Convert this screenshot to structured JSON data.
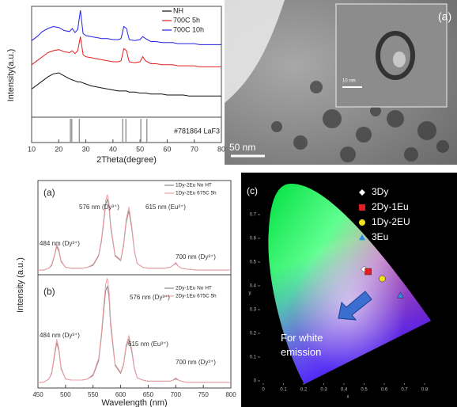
{
  "chart_data": [
    {
      "type": "line",
      "xlabel": "2Theta(degree)",
      "ylabel": "Intensity(a.u.)",
      "x": [
        10,
        12,
        14,
        16,
        18,
        20,
        22,
        24,
        25,
        26,
        27,
        28,
        29,
        30,
        32,
        34,
        36,
        38,
        40,
        42,
        43,
        44,
        45,
        46,
        48,
        50,
        51,
        52,
        54,
        56,
        58,
        60,
        62,
        64,
        66,
        68,
        70,
        72,
        74,
        76,
        78,
        80
      ],
      "series": [
        {
          "name": "NH",
          "color": "#111111",
          "values": [
            2.8,
            3.2,
            3.6,
            4.0,
            4.3,
            4.4,
            4.1,
            3.8,
            3.7,
            3.6,
            3.5,
            3.5,
            3.4,
            3.3,
            3.1,
            3.0,
            2.9,
            2.8,
            2.7,
            2.6,
            2.6,
            2.6,
            2.6,
            2.5,
            2.5,
            2.4,
            2.4,
            2.4,
            2.3,
            2.3,
            2.3,
            2.2,
            2.2,
            2.2,
            2.2,
            2.1,
            2.1,
            2.1,
            2.1,
            2.1,
            2.1,
            2.1
          ]
        },
        {
          "name": "700C 5h",
          "color": "#e02020",
          "values": [
            5.2,
            5.6,
            6.0,
            6.4,
            6.6,
            6.7,
            6.5,
            6.4,
            6.6,
            6.3,
            6.6,
            8.0,
            6.2,
            6.0,
            5.9,
            5.8,
            5.7,
            5.6,
            5.5,
            5.5,
            5.6,
            6.8,
            6.6,
            5.5,
            5.4,
            5.5,
            6.0,
            5.6,
            5.3,
            5.3,
            5.2,
            5.2,
            5.2,
            5.1,
            5.1,
            5.1,
            5.1,
            5.0,
            5.0,
            5.0,
            5.0,
            5.0
          ]
        },
        {
          "name": "700C 10h",
          "color": "#2020e0",
          "values": [
            7.6,
            8.0,
            8.5,
            8.8,
            9.0,
            8.9,
            8.6,
            8.5,
            8.8,
            8.4,
            8.7,
            10.6,
            8.3,
            8.1,
            8.0,
            7.9,
            7.8,
            7.8,
            7.7,
            7.7,
            7.8,
            9.0,
            8.8,
            7.7,
            7.6,
            7.7,
            8.0,
            7.8,
            7.5,
            7.5,
            7.4,
            7.4,
            7.4,
            7.3,
            7.3,
            7.3,
            7.3,
            7.2,
            7.2,
            7.2,
            7.2,
            7.2
          ]
        }
      ],
      "xlim": [
        10,
        80
      ],
      "xticks": [
        10,
        20,
        30,
        40,
        50,
        60,
        70,
        80
      ],
      "ylim": [
        0,
        11
      ],
      "reference": {
        "label": "#781864 LaF3",
        "positions": [
          24.3,
          24.8,
          27.6,
          43.6,
          44.8,
          50.3,
          52.5
        ]
      }
    },
    {
      "type": "line",
      "panel_label": "(a)",
      "annotations": [
        "576 nm (Dy³⁺)",
        "615 nm (Eu³⁺)",
        "484 nm (Dy³⁺)",
        "700 nm (Dy³⁺)"
      ],
      "x": [
        450,
        460,
        470,
        475,
        480,
        484,
        488,
        492,
        500,
        510,
        520,
        530,
        540,
        550,
        560,
        565,
        570,
        573,
        576,
        579,
        582,
        590,
        600,
        605,
        610,
        615,
        620,
        625,
        630,
        640,
        650,
        660,
        670,
        680,
        690,
        695,
        700,
        705,
        710,
        720,
        740,
        760,
        780,
        800
      ],
      "series": [
        {
          "name": "1Dy-2Eu No HT",
          "color": "#888888",
          "values": [
            0.05,
            0.05,
            0.07,
            0.1,
            0.2,
            0.3,
            0.25,
            0.14,
            0.08,
            0.07,
            0.07,
            0.07,
            0.08,
            0.1,
            0.2,
            0.35,
            0.6,
            0.75,
            0.8,
            0.72,
            0.5,
            0.2,
            0.15,
            0.3,
            0.55,
            0.68,
            0.5,
            0.25,
            0.12,
            0.08,
            0.07,
            0.07,
            0.07,
            0.07,
            0.08,
            0.1,
            0.12,
            0.09,
            0.07,
            0.06,
            0.05,
            0.05,
            0.05,
            0.05
          ]
        },
        {
          "name": "1Dy-2Eu 675C 5h",
          "color": "#f0a0a8",
          "values": [
            0.05,
            0.05,
            0.07,
            0.11,
            0.21,
            0.32,
            0.27,
            0.15,
            0.08,
            0.07,
            0.07,
            0.07,
            0.08,
            0.11,
            0.21,
            0.37,
            0.63,
            0.79,
            0.85,
            0.76,
            0.53,
            0.21,
            0.16,
            0.32,
            0.58,
            0.72,
            0.53,
            0.26,
            0.12,
            0.08,
            0.07,
            0.07,
            0.07,
            0.07,
            0.08,
            0.1,
            0.13,
            0.09,
            0.07,
            0.06,
            0.05,
            0.05,
            0.05,
            0.05
          ]
        }
      ],
      "xlim": [
        450,
        800
      ],
      "ylim": [
        0,
        1
      ]
    },
    {
      "type": "line",
      "panel_label": "(b)",
      "xlabel": "Wavelength (nm)",
      "ylabel": "Intensity (a.u.)",
      "annotations": [
        "576 nm (Dy³⁺)",
        "484 nm (Dy³⁺)",
        "615 nm (Eu³⁺)",
        "700 nm (Dy³⁺)"
      ],
      "x": [
        450,
        460,
        470,
        475,
        480,
        484,
        488,
        492,
        500,
        510,
        520,
        530,
        540,
        550,
        560,
        565,
        570,
        573,
        576,
        579,
        582,
        590,
        600,
        605,
        610,
        615,
        620,
        625,
        630,
        640,
        650,
        660,
        670,
        680,
        690,
        695,
        700,
        705,
        710,
        720,
        740,
        760,
        780,
        800
      ],
      "series": [
        {
          "name": "2Dy-1Eu No HT",
          "color": "#888888",
          "values": [
            0.05,
            0.05,
            0.08,
            0.13,
            0.28,
            0.4,
            0.33,
            0.17,
            0.08,
            0.07,
            0.07,
            0.07,
            0.08,
            0.11,
            0.24,
            0.45,
            0.72,
            0.86,
            0.9,
            0.8,
            0.55,
            0.2,
            0.13,
            0.2,
            0.36,
            0.43,
            0.33,
            0.17,
            0.09,
            0.07,
            0.06,
            0.06,
            0.06,
            0.06,
            0.06,
            0.07,
            0.08,
            0.07,
            0.06,
            0.05,
            0.05,
            0.05,
            0.05,
            0.05
          ]
        },
        {
          "name": "2Dy-1Eu 675C 5h",
          "color": "#f0a0a8",
          "values": [
            0.05,
            0.05,
            0.08,
            0.14,
            0.3,
            0.43,
            0.35,
            0.18,
            0.08,
            0.07,
            0.07,
            0.07,
            0.08,
            0.12,
            0.26,
            0.48,
            0.77,
            0.92,
            0.97,
            0.86,
            0.59,
            0.21,
            0.14,
            0.21,
            0.38,
            0.46,
            0.35,
            0.18,
            0.09,
            0.07,
            0.06,
            0.06,
            0.06,
            0.06,
            0.06,
            0.07,
            0.09,
            0.07,
            0.06,
            0.05,
            0.05,
            0.05,
            0.05,
            0.05
          ]
        }
      ],
      "xlim": [
        450,
        800
      ],
      "xticks": [
        450,
        500,
        550,
        600,
        650,
        700,
        750,
        800
      ],
      "ylim": [
        0,
        1
      ]
    },
    {
      "type": "scatter",
      "panel_label": "(c)",
      "xlabel": "x",
      "ylabel": "y",
      "annotation": "For white emission",
      "series": [
        {
          "name": "3Dy",
          "color": "#ffffff",
          "marker": "diamond",
          "x": [
            0.5
          ],
          "values": [
            0.47
          ]
        },
        {
          "name": "2Dy-1Eu",
          "color": "#e02020",
          "marker": "square",
          "x": [
            0.52
          ],
          "values": [
            0.46
          ]
        },
        {
          "name": "1Dy-2EU",
          "color": "#f2e020",
          "marker": "circle",
          "x": [
            0.59
          ],
          "values": [
            0.43
          ]
        },
        {
          "name": "3Eu",
          "color": "#2a8fe0",
          "marker": "triangle",
          "x": [
            0.68
          ],
          "values": [
            0.36
          ]
        }
      ],
      "xlim": [
        0,
        0.8
      ],
      "xticks": [
        0,
        0.1,
        0.2,
        0.3,
        0.4,
        0.5,
        0.6,
        0.7,
        0.8
      ],
      "ylim": [
        0,
        0.8
      ],
      "yticks": [
        0,
        0.1,
        0.2,
        0.3,
        0.4,
        0.5,
        0.6,
        0.7
      ]
    }
  ],
  "tem_image": {
    "panel_label": "(a)",
    "scale_bar": "50 nm",
    "inset_scale_bar": "10 nm"
  }
}
